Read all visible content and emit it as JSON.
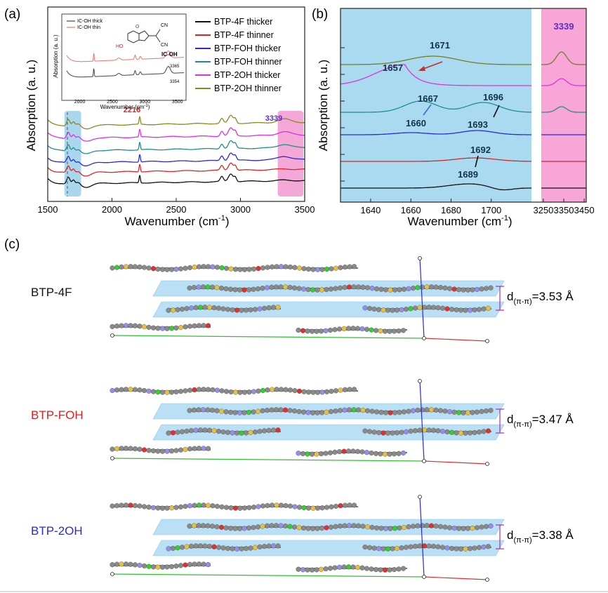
{
  "panel_labels": {
    "a": "(a)",
    "b": "(b)",
    "c": "(c)"
  },
  "chart_data": [
    {
      "type": "line",
      "panel": "(a)",
      "title": "",
      "xlabel": "Wavenumber (cm",
      "xlabel_sup": "-1",
      "xlabel_end": ")",
      "ylabel": "Absorption (a. u.)",
      "xlim": [
        1500,
        3500
      ],
      "xticks": [
        "1500",
        "2000",
        "2500",
        "3000",
        "3500"
      ],
      "highlight_bands": [
        {
          "from": 1630,
          "to": 1760,
          "color": "#a9d8ee"
        },
        {
          "from": 3290,
          "to": 3490,
          "color": "#f4a8d8"
        }
      ],
      "annotations": [
        {
          "text": "2216",
          "x": 2216,
          "color": "#e02020"
        },
        {
          "text": "3339",
          "x": 3339,
          "color": "#5a2dd0"
        }
      ],
      "legend_position": "top-right",
      "series": [
        {
          "name": "BTP-4F thicker",
          "color": "#111111",
          "offset": 0
        },
        {
          "name": "BTP-4F thinner",
          "color": "#e02424",
          "offset": 1
        },
        {
          "name": "BTP-FOH thicker",
          "color": "#2a2ad8",
          "offset": 2
        },
        {
          "name": "BTP-FOH thinner",
          "color": "#1f8e8e",
          "offset": 3
        },
        {
          "name": "BTP-2OH thicker",
          "color": "#e030e0",
          "offset": 4
        },
        {
          "name": "BTP-2OH thinner",
          "color": "#8a8a1e",
          "offset": 5
        }
      ],
      "peaks_cm1": [
        1660,
        1700,
        2216,
        2850,
        2920,
        2950,
        3339
      ],
      "inset": {
        "ylabel": "Absorption (a. u.)",
        "xlabel": "Wavenumber (cm",
        "xlabel_sup": "-1",
        "xlabel_end": ")",
        "xlim": [
          1800,
          3600
        ],
        "xticks": [
          "2000",
          "2500",
          "3000",
          "3500"
        ],
        "compound_label": "IC-OH",
        "group_labels": [
          "CN",
          "CN",
          "HO",
          "O"
        ],
        "series": [
          {
            "name": "IC-OH thick",
            "color": "#444444"
          },
          {
            "name": "IC-OH thin",
            "color": "#f07070"
          }
        ],
        "annotations": [
          {
            "text": "3365",
            "x": 3365
          },
          {
            "text": "3354",
            "x": 3354
          }
        ]
      }
    },
    {
      "type": "line",
      "panel": "(b)",
      "xlabel": "Wavenumber (cm",
      "xlabel_sup": "-1",
      "xlabel_end": ")",
      "ylabel": "Absorption (a. u.)",
      "xlim_left": [
        1625,
        1720
      ],
      "xlim_right": [
        3240,
        3460
      ],
      "xticks_left": [
        "1640",
        "1660",
        "1680",
        "1700"
      ],
      "xticks_right": [
        "3250",
        "3350",
        "3450"
      ],
      "left_background": "#a9daf0",
      "right_background": "#f8a6d8",
      "right_annotation": {
        "text": "3339",
        "x": 3339,
        "color": "#5a2dd0"
      },
      "series": [
        {
          "name": "BTP-4F thicker",
          "color": "#111111",
          "peak": 1689
        },
        {
          "name": "BTP-4F thinner",
          "color": "#d02828",
          "peak": 1692
        },
        {
          "name": "BTP-FOH thicker",
          "color": "#2a2ad8",
          "peak": 1693
        },
        {
          "name": "BTP-FOH thinner",
          "color": "#1f8e8e",
          "peak": 1696
        },
        {
          "name": "BTP-2OH thicker",
          "color": "#e030e0",
          "peak": 1657
        },
        {
          "name": "BTP-2OH thinner",
          "color": "#7a7a20",
          "peak": 1671
        }
      ],
      "annotations": [
        {
          "text": "1671",
          "x": 1671
        },
        {
          "text": "1657",
          "x": 1657
        },
        {
          "text": "1667",
          "x": 1667
        },
        {
          "text": "1696",
          "x": 1696
        },
        {
          "text": "1660",
          "x": 1660
        },
        {
          "text": "1693",
          "x": 1693
        },
        {
          "text": "1692",
          "x": 1692
        },
        {
          "text": "1689",
          "x": 1689
        }
      ]
    }
  ],
  "panel_c": {
    "molecules": [
      {
        "name": "BTP-4F",
        "color": "#111111",
        "spacing": "d",
        "spacing_sub": "(π-π)",
        "spacing_value": "=3.53 Å"
      },
      {
        "name": "BTP-FOH",
        "color": "#e02020",
        "spacing": "d",
        "spacing_sub": "(π-π)",
        "spacing_value": "=3.47 Å"
      },
      {
        "name": "BTP-2OH",
        "color": "#2a2ad8",
        "spacing": "d",
        "spacing_sub": "(π-π)",
        "spacing_value": "=3.38 Å"
      }
    ],
    "plane_color": "#a8d8f2",
    "atom_colors": {
      "carbon": "#8a8a8a",
      "nitrogen": "#9090e8",
      "sulfur": "#e8c040",
      "oxygen": "#e03030",
      "fluorine": "#30d030"
    }
  }
}
